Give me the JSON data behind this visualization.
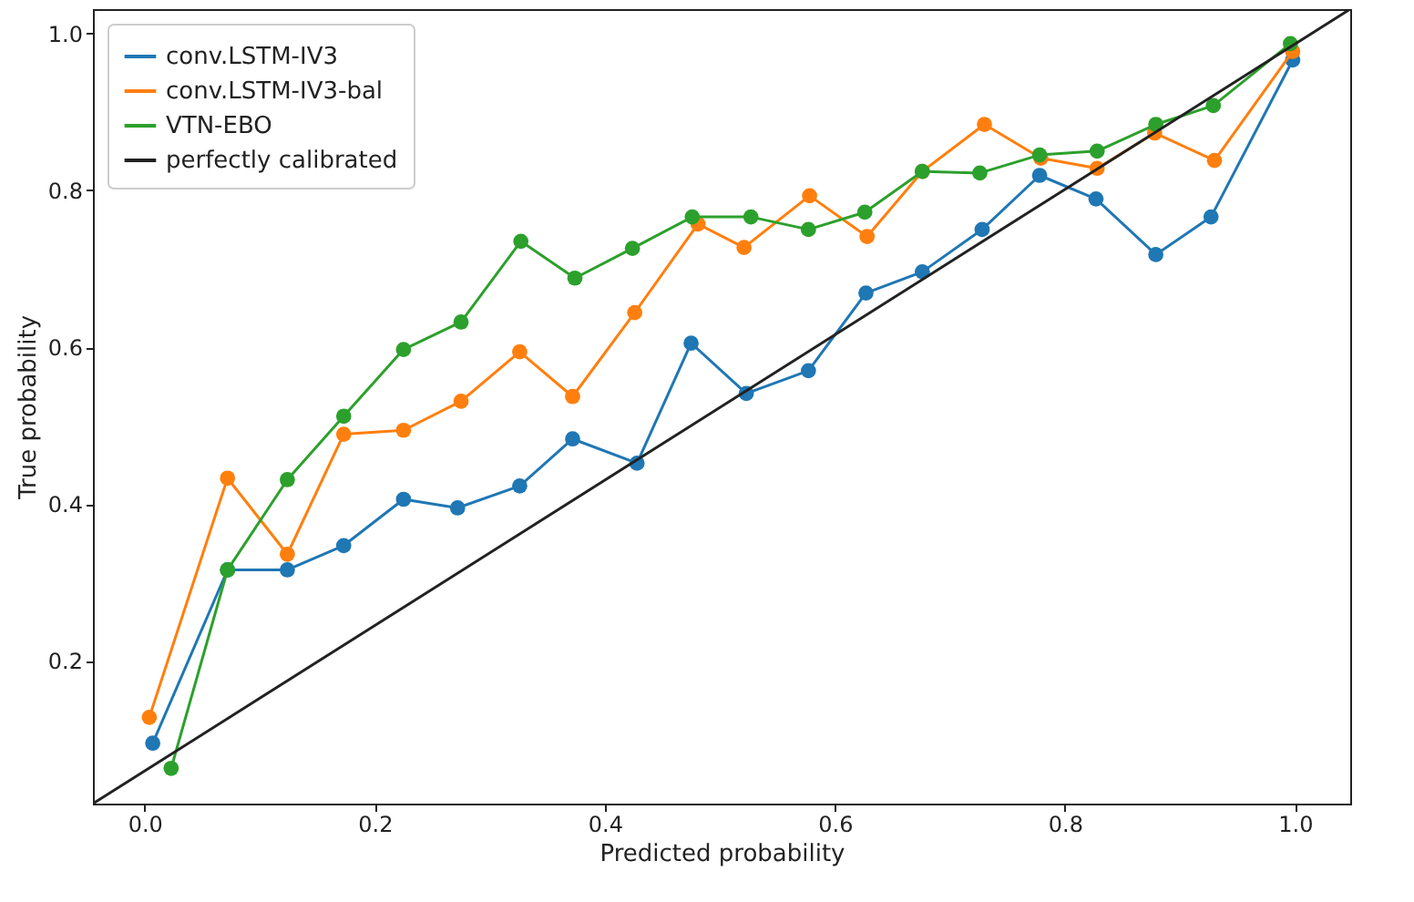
{
  "chart_data": {
    "type": "line",
    "xlabel": "Predicted probability",
    "ylabel": "True probability",
    "xlim": [
      -0.045,
      1.048
    ],
    "ylim": [
      0.018,
      1.031
    ],
    "xticks": [
      {
        "value": 0,
        "label": "0.0"
      },
      0.2,
      0.4,
      0.6,
      0.8,
      {
        "value": 1,
        "label": "1.0"
      }
    ],
    "yticks": [
      0.2,
      0.4,
      0.6,
      0.8,
      {
        "value": 1,
        "label": "1.0"
      }
    ],
    "grid": false,
    "legend": "top left",
    "marker": "circle",
    "line_style": "solid",
    "series": [
      {
        "name": "conv.LSTM-IV3",
        "color": "#1f77b4",
        "x": [
          0.007,
          0.072,
          0.124,
          0.173,
          0.225,
          0.272,
          0.326,
          0.372,
          0.428,
          0.475,
          0.523,
          0.577,
          0.627,
          0.676,
          0.728,
          0.778,
          0.827,
          0.879,
          0.927,
          0.998
        ],
        "values": [
          0.095,
          0.316,
          0.316,
          0.347,
          0.406,
          0.395,
          0.423,
          0.483,
          0.452,
          0.605,
          0.541,
          0.57,
          0.669,
          0.696,
          0.75,
          0.819,
          0.789,
          0.718,
          0.766,
          0.966
        ]
      },
      {
        "name": "conv.LSTM-IV3-bal",
        "color": "#ff7f0e",
        "x": [
          0.004,
          0.072,
          0.124,
          0.173,
          0.225,
          0.275,
          0.326,
          0.372,
          0.426,
          0.481,
          0.521,
          0.578,
          0.628,
          0.676,
          0.73,
          0.779,
          0.828,
          0.878,
          0.93,
          0.998
        ],
        "values": [
          0.128,
          0.433,
          0.336,
          0.489,
          0.494,
          0.531,
          0.594,
          0.537,
          0.644,
          0.757,
          0.727,
          0.793,
          0.741,
          0.824,
          0.884,
          0.841,
          0.828,
          0.873,
          0.838,
          0.977
        ]
      },
      {
        "name": "VTN-EBO",
        "color": "#2ca02c",
        "x": [
          0.023,
          0.072,
          0.124,
          0.173,
          0.225,
          0.275,
          0.327,
          0.374,
          0.424,
          0.476,
          0.527,
          0.577,
          0.626,
          0.676,
          0.726,
          0.778,
          0.828,
          0.879,
          0.929,
          0.996
        ],
        "values": [
          0.063,
          0.316,
          0.431,
          0.512,
          0.597,
          0.632,
          0.735,
          0.688,
          0.726,
          0.766,
          0.766,
          0.75,
          0.772,
          0.824,
          0.822,
          0.845,
          0.85,
          0.884,
          0.908,
          0.987
        ]
      },
      {
        "name": "perfectly calibrated",
        "color": "#222222",
        "type": "line",
        "marker": "none",
        "x": [
          -0.045,
          1.048
        ],
        "values": [
          0.018,
          1.031
        ]
      }
    ]
  }
}
